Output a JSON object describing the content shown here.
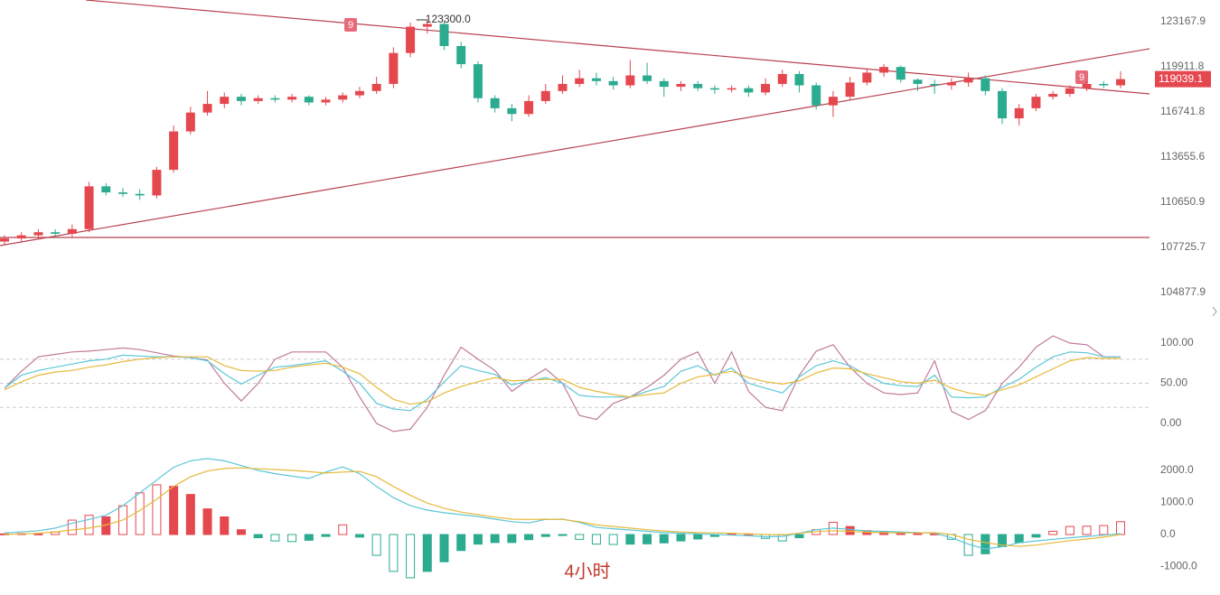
{
  "chart_data": [
    {
      "type": "candlestick",
      "log_scale": true,
      "up_color": "#e5474f",
      "down_color": "#2bab8f",
      "ylim": [
        103427,
        124762
      ],
      "yticks": [
        123167.9,
        119911.8,
        116741.8,
        113655.6,
        110650.9,
        107725.7,
        104877.9
      ],
      "high_label": {
        "value": 123300,
        "label": "123300.0"
      },
      "last_price": 119039.1,
      "signals": [
        "9",
        "9"
      ],
      "candles": [
        [
          108100,
          108500,
          107900,
          108300
        ],
        [
          108300,
          108700,
          108100,
          108500
        ],
        [
          108500,
          108900,
          108300,
          108700
        ],
        [
          108700,
          108900,
          108400,
          108600
        ],
        [
          108600,
          109200,
          108400,
          108900
        ],
        [
          108900,
          112000,
          108700,
          111700
        ],
        [
          111700,
          111900,
          111100,
          111300
        ],
        [
          111300,
          111600,
          111000,
          111200
        ],
        [
          111200,
          111500,
          110800,
          111100
        ],
        [
          111100,
          113000,
          110900,
          112800
        ],
        [
          112800,
          115800,
          112600,
          115400
        ],
        [
          115400,
          117100,
          115200,
          116700
        ],
        [
          116700,
          118200,
          116500,
          117300
        ],
        [
          117300,
          118100,
          117000,
          117800
        ],
        [
          117800,
          118000,
          117200,
          117500
        ],
        [
          117500,
          117900,
          117300,
          117700
        ],
        [
          117700,
          117900,
          117400,
          117600
        ],
        [
          117600,
          118000,
          117400,
          117800
        ],
        [
          117800,
          117900,
          117200,
          117400
        ],
        [
          117400,
          117800,
          117200,
          117600
        ],
        [
          117600,
          118100,
          117400,
          117900
        ],
        [
          117900,
          118500,
          117700,
          118200
        ],
        [
          118200,
          119200,
          118000,
          118700
        ],
        [
          118700,
          121300,
          118400,
          120900
        ],
        [
          120900,
          123100,
          120600,
          122800
        ],
        [
          122800,
          123300,
          122300,
          123000
        ],
        [
          123000,
          123200,
          121100,
          121400
        ],
        [
          121400,
          121700,
          119800,
          120100
        ],
        [
          120100,
          120300,
          117400,
          117700
        ],
        [
          117700,
          117900,
          116700,
          117000
        ],
        [
          117000,
          117300,
          116100,
          116600
        ],
        [
          116600,
          117900,
          116400,
          117500
        ],
        [
          117500,
          118700,
          117300,
          118200
        ],
        [
          118200,
          119300,
          118000,
          118700
        ],
        [
          118700,
          119700,
          118500,
          119100
        ],
        [
          119100,
          119500,
          118600,
          118900
        ],
        [
          118900,
          119200,
          118300,
          118600
        ],
        [
          118600,
          120400,
          118400,
          119300
        ],
        [
          119300,
          120200,
          118700,
          118900
        ],
        [
          118900,
          119100,
          117800,
          118500
        ],
        [
          118500,
          118900,
          118200,
          118700
        ],
        [
          118700,
          118900,
          118200,
          118400
        ],
        [
          118400,
          118600,
          118000,
          118300
        ],
        [
          118300,
          118600,
          118100,
          118400
        ],
        [
          118400,
          118600,
          117800,
          118100
        ],
        [
          118100,
          119100,
          117900,
          118700
        ],
        [
          118700,
          119700,
          118500,
          119400
        ],
        [
          119400,
          119600,
          118100,
          118600
        ],
        [
          118600,
          118800,
          116900,
          117200
        ],
        [
          117200,
          118200,
          116400,
          117800
        ],
        [
          117800,
          119200,
          117600,
          118800
        ],
        [
          118800,
          119800,
          118600,
          119500
        ],
        [
          119500,
          120100,
          119200,
          119900
        ],
        [
          119900,
          120000,
          118800,
          119000
        ],
        [
          119000,
          119100,
          118200,
          118700
        ],
        [
          118700,
          119000,
          118000,
          118600
        ],
        [
          118600,
          119100,
          118300,
          118800
        ],
        [
          118800,
          119500,
          118500,
          119100
        ],
        [
          119100,
          119300,
          117900,
          118200
        ],
        [
          118200,
          118400,
          115900,
          116300
        ],
        [
          116300,
          117300,
          115800,
          117000
        ],
        [
          117000,
          118000,
          116800,
          117800
        ],
        [
          117800,
          118200,
          117600,
          118000
        ],
        [
          118000,
          118600,
          117800,
          118400
        ],
        [
          118400,
          118900,
          118200,
          118700
        ],
        [
          118700,
          118900,
          118400,
          118600
        ],
        [
          118600,
          119600,
          118400,
          119039.1
        ]
      ]
    },
    {
      "type": "line",
      "ylim": [
        -25.8,
        116.9
      ],
      "yticks": [
        {
          "value": 100,
          "label": "100.00"
        },
        {
          "value": 50,
          "label": "50.00"
        },
        {
          "value": 0,
          "label": "0.00"
        }
      ],
      "reference_lines": [
        80,
        50,
        20
      ],
      "series": [
        {
          "color": "#c07a9a",
          "values": [
            44,
            65,
            83,
            86,
            89,
            90,
            92,
            94,
            92,
            88,
            84,
            82,
            79,
            50,
            28,
            50,
            80,
            89,
            89,
            89,
            70,
            33,
            0,
            -10,
            -7,
            20,
            60,
            95,
            80,
            66,
            40,
            55,
            68,
            50,
            10,
            5,
            25,
            33,
            45,
            60,
            80,
            89,
            50,
            89,
            40,
            20,
            16,
            60,
            90,
            98,
            70,
            50,
            38,
            36,
            38,
            78,
            15,
            5,
            16,
            50,
            70,
            95,
            109,
            100,
            98,
            83,
            83
          ]
        },
        {
          "color": "#5cc6d8",
          "values": [
            44,
            60,
            66,
            70,
            74,
            78,
            80,
            85,
            84,
            83,
            83,
            82,
            78,
            62,
            49,
            60,
            70,
            72,
            75,
            78,
            65,
            50,
            25,
            18,
            16,
            30,
            52,
            72,
            66,
            61,
            48,
            53,
            57,
            50,
            35,
            33,
            33,
            33,
            40,
            46,
            65,
            72,
            60,
            69,
            50,
            44,
            38,
            58,
            72,
            78,
            72,
            60,
            50,
            47,
            46,
            60,
            33,
            32,
            33,
            45,
            55,
            70,
            83,
            89,
            88,
            83,
            83
          ]
        },
        {
          "color": "#e6b93a",
          "values": [
            42,
            52,
            60,
            64,
            66,
            70,
            73,
            77,
            80,
            82,
            83,
            83,
            83,
            72,
            66,
            65,
            66,
            70,
            73,
            75,
            70,
            62,
            45,
            30,
            24,
            27,
            38,
            46,
            52,
            57,
            53,
            54,
            55,
            55,
            45,
            40,
            36,
            33,
            36,
            38,
            50,
            58,
            61,
            65,
            57,
            52,
            49,
            53,
            63,
            69,
            68,
            62,
            57,
            52,
            50,
            54,
            44,
            38,
            35,
            42,
            48,
            58,
            68,
            78,
            82,
            81,
            81
          ]
        }
      ]
    },
    {
      "type": "bar",
      "ylim": [
        -1577,
        2592
      ],
      "up_color": "#e5474f",
      "down_color": "#2bab8f",
      "yticks": [
        {
          "value": 2000,
          "label": "2000.0"
        },
        {
          "value": 1000,
          "label": "1000.0"
        },
        {
          "value": 0,
          "label": "0.0"
        },
        {
          "value": -1000,
          "label": "-1000.0"
        }
      ],
      "annotation": "4小时",
      "values": [
        20,
        30,
        20,
        80,
        450,
        600,
        550,
        900,
        1300,
        1550,
        1500,
        1250,
        800,
        550,
        150,
        -100,
        -200,
        -220,
        -180,
        -60,
        300,
        -80,
        -650,
        -1150,
        -1350,
        -1150,
        -850,
        -500,
        -300,
        -250,
        -250,
        -160,
        -60,
        -30,
        -150,
        -300,
        -310,
        -300,
        -290,
        -260,
        -200,
        -140,
        -60,
        40,
        20,
        -120,
        -200,
        -100,
        150,
        380,
        250,
        120,
        90,
        60,
        50,
        20,
        -150,
        -650,
        -600,
        -380,
        -250,
        -80,
        100,
        250,
        260,
        280,
        400
      ],
      "series": [
        {
          "color": "#5cc6d8",
          "values": [
            50,
            80,
            120,
            200,
            350,
            470,
            600,
            900,
            1300,
            1700,
            2100,
            2300,
            2370,
            2300,
            2150,
            2000,
            1900,
            1820,
            1750,
            1950,
            2110,
            1900,
            1500,
            1150,
            900,
            760,
            680,
            620,
            560,
            480,
            400,
            360,
            470,
            480,
            380,
            220,
            180,
            140,
            100,
            60,
            40,
            20,
            0,
            -20,
            -40,
            -70,
            -60,
            40,
            150,
            200,
            160,
            110,
            100,
            80,
            60,
            40,
            -100,
            -300,
            -450,
            -380,
            -260,
            -200,
            -150,
            -100,
            -60,
            -20,
            30
          ]
        },
        {
          "color": "#e6b93a",
          "values": [
            0,
            20,
            40,
            80,
            140,
            200,
            300,
            450,
            750,
            1100,
            1500,
            1800,
            1980,
            2060,
            2080,
            2050,
            2030,
            2000,
            1960,
            1920,
            1950,
            1970,
            1800,
            1500,
            1220,
            980,
            820,
            700,
            620,
            540,
            480,
            470,
            480,
            470,
            400,
            300,
            250,
            200,
            150,
            110,
            80,
            60,
            50,
            40,
            20,
            0,
            -10,
            40,
            90,
            120,
            100,
            70,
            56,
            50,
            50,
            56,
            0,
            -150,
            -250,
            -330,
            -370,
            -330,
            -260,
            -190,
            -140,
            -80,
            0
          ]
        }
      ]
    }
  ]
}
